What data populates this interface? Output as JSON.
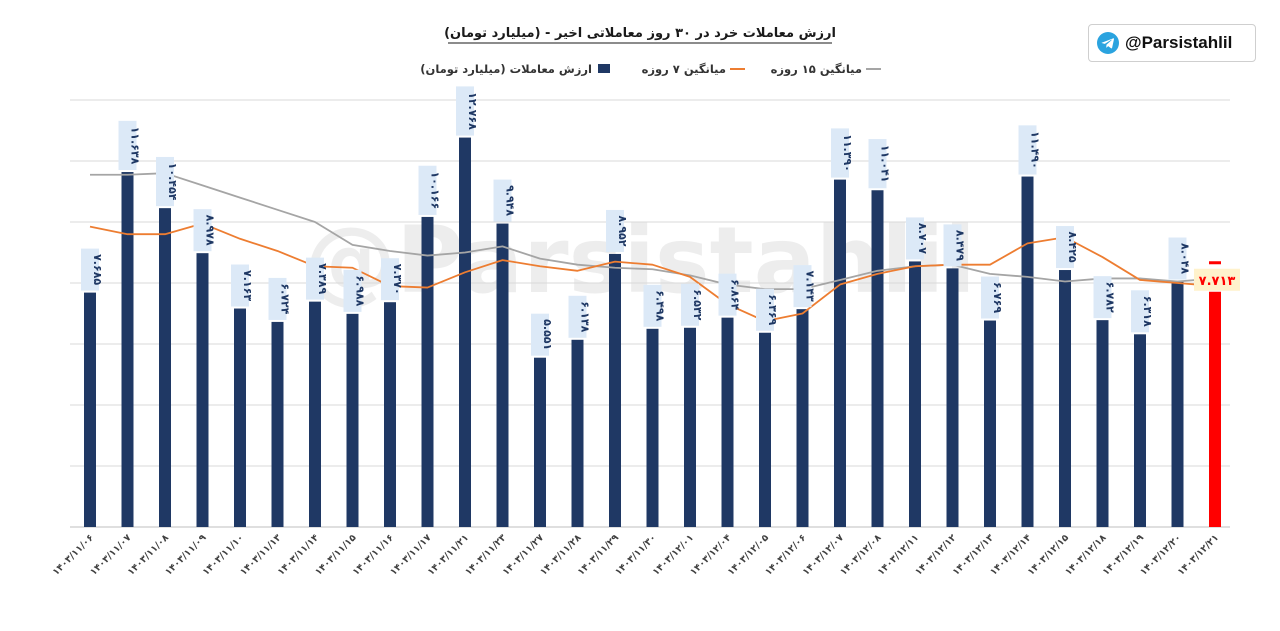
{
  "badge": {
    "handle": "@Parsistahlil",
    "icon": "telegram-icon"
  },
  "watermark": "@Parsistahlil",
  "colors": {
    "bar": "#1f3864",
    "highlight_bar": "#ff0000",
    "ma7": "#ed7d31",
    "ma15": "#a5a5a5",
    "label_bg": "#dce9f7",
    "label_text": "#1f3864",
    "highlight_label_bg": "#fff2cc",
    "highlight_label_text": "#ff0000"
  },
  "chart_data": {
    "type": "bar",
    "title": "ارزش معاملات خرد در ۳۰ روز معاملاتی اخیر - (میلیارد تومان)",
    "legend": {
      "placement": "top-center",
      "items": [
        "ارزش معاملات (میلیارد تومان)",
        "میانگین ۷ روزه",
        "میانگین ۱۵ روزه"
      ]
    },
    "grid": true,
    "ylim": [
      0,
      14
    ],
    "categories": [
      "۱۴۰۳/۱۱/۰۶",
      "۱۴۰۳/۱۱/۰۷",
      "۱۴۰۳/۱۱/۰۸",
      "۱۴۰۳/۱۱/۰۹",
      "۱۴۰۳/۱۱/۱۰",
      "۱۴۰۳/۱۱/۱۳",
      "۱۴۰۳/۱۱/۱۴",
      "۱۴۰۳/۱۱/۱۵",
      "۱۴۰۳/۱۱/۱۶",
      "۱۴۰۳/۱۱/۱۷",
      "۱۴۰۳/۱۱/۲۱",
      "۱۴۰۳/۱۱/۲۳",
      "۱۴۰۳/۱۱/۲۷",
      "۱۴۰۳/۱۱/۲۸",
      "۱۴۰۳/۱۱/۲۹",
      "۱۴۰۳/۱۱/۳۰",
      "۱۴۰۳/۱۲/۰۱",
      "۱۴۰۳/۱۲/۰۴",
      "۱۴۰۳/۱۲/۰۵",
      "۱۴۰۳/۱۲/۰۶",
      "۱۴۰۳/۱۲/۰۷",
      "۱۴۰۳/۱۲/۰۸",
      "۱۴۰۳/۱۲/۱۱",
      "۱۴۰۳/۱۲/۱۲",
      "۱۴۰۳/۱۲/۱۳",
      "۱۴۰۳/۱۲/۱۴",
      "۱۴۰۳/۱۲/۱۵",
      "۱۴۰۳/۱۲/۱۸",
      "۱۴۰۳/۱۲/۱۹",
      "۱۴۰۳/۱۲/۲۰",
      "۱۴۰۳/۱۲/۲۱"
    ],
    "series": [
      {
        "name": "ارزش معاملات (میلیارد تومان)",
        "type": "bar",
        "values": [
          7.685,
          11.638,
          10.454,
          8.978,
          7.163,
          6.724,
          7.389,
          6.988,
          7.37,
          10.166,
          12.768,
          9.948,
          5.551,
          6.138,
          8.952,
          6.498,
          6.532,
          6.864,
          6.369,
          7.143,
          11.39,
          11.041,
          8.707,
          8.479,
          6.769,
          11.49,
          8.425,
          6.782,
          6.318,
          8.048,
          7.713
        ],
        "labels": [
          "۷.۶۸۵",
          "۱۱.۶۳۸",
          "۱۰.۴۵۴",
          "۸.۹۷۸",
          "۷.۱۶۳",
          "۶.۷۲۴",
          "۷.۳۸۹",
          "۶.۹۸۸",
          "۷.۳۷۰",
          "۱۰.۱۶۶",
          "۱۲.۷۶۸",
          "۹.۹۴۸",
          "۵.۵۵۱",
          "۶.۱۳۸",
          "۸.۹۵۲",
          "۶.۴۹۸",
          "۶.۵۳۲",
          "۶.۸۶۴",
          "۶.۳۶۹",
          "۷.۱۴۳",
          "۱۱.۳۹۰",
          "۱۱.۰۴۱",
          "۸.۷۰۷",
          "۸.۴۷۹",
          "۶.۷۶۹",
          "۱۱.۴۹۰",
          "۸.۴۲۵",
          "۶.۷۸۲",
          "۶.۳۱۸",
          "۸.۰۴۸",
          "۷.۷۱۳"
        ],
        "highlight_index": 30
      },
      {
        "name": "میانگین ۷ روزه",
        "type": "line",
        "values": [
          9.85,
          9.6,
          9.6,
          9.95,
          9.45,
          9.05,
          8.55,
          8.5,
          7.9,
          7.85,
          8.35,
          8.75,
          8.55,
          8.4,
          8.7,
          8.6,
          8.2,
          7.3,
          6.75,
          7.0,
          7.95,
          8.3,
          8.55,
          8.6,
          8.6,
          9.3,
          9.5,
          8.85,
          8.1,
          8.0,
          7.9
        ]
      },
      {
        "name": "میانگین ۱۵ روزه",
        "type": "line",
        "values": [
          11.55,
          11.55,
          11.6,
          11.2,
          10.8,
          10.4,
          10.0,
          9.25,
          9.05,
          8.9,
          9.0,
          9.2,
          8.8,
          8.6,
          8.5,
          8.45,
          8.25,
          7.95,
          7.8,
          7.8,
          8.1,
          8.4,
          8.55,
          8.6,
          8.3,
          8.2,
          8.05,
          8.15,
          8.15,
          8.05,
          8.15
        ]
      }
    ]
  }
}
